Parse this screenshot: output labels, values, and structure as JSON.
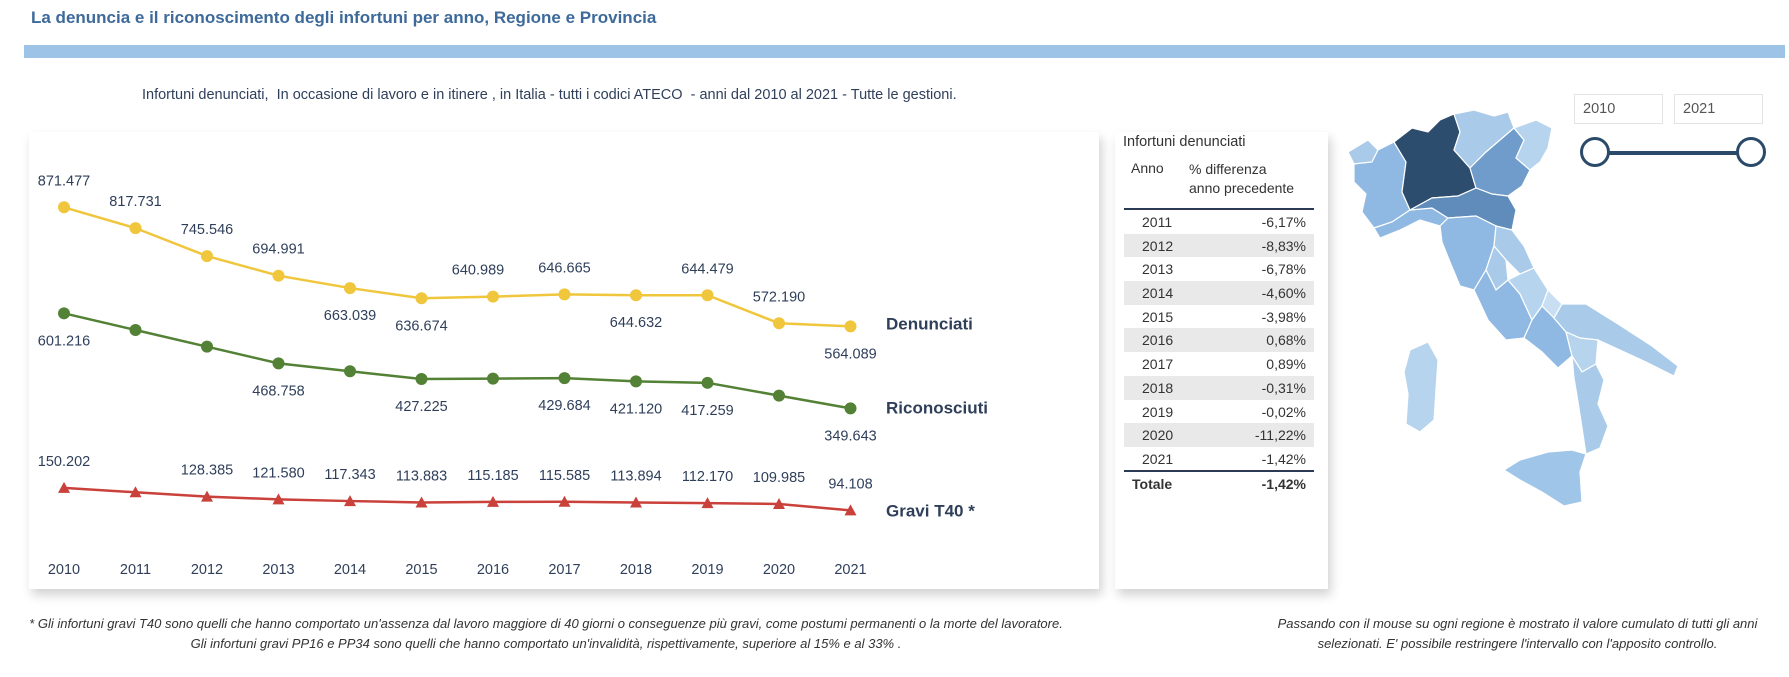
{
  "header": {
    "title": "La denuncia e il riconoscimento degli infortuni per anno, Regione e Provincia",
    "subtitle": "Infortuni denunciati,  In occasione di lavoro e in itinere , in Italia - tutti i codici ATECO  - anni dal 2010 al 2021 - Tutte le gestioni."
  },
  "chart_data": {
    "type": "line",
    "x": [
      "2010",
      "2011",
      "2012",
      "2013",
      "2014",
      "2015",
      "2016",
      "2017",
      "2018",
      "2019",
      "2020",
      "2021"
    ],
    "series": [
      {
        "name": "Denunciati",
        "color": "#f0c63d",
        "marker": "circle",
        "values": [
          871477,
          817731,
          745546,
          694991,
          663039,
          636674,
          640989,
          646665,
          644632,
          644479,
          572190,
          564089
        ],
        "labels": [
          "871.477",
          "817.731",
          "745.546",
          "694.991",
          "663.039",
          "636.674",
          "640.989",
          "646.665",
          "644.632",
          "644.479",
          "572.190",
          "564.089"
        ]
      },
      {
        "name": "Riconosciuti",
        "color": "#538135",
        "marker": "circle",
        "values": [
          601216,
          null,
          null,
          468758,
          null,
          427225,
          null,
          429684,
          421120,
          417259,
          null,
          349643
        ],
        "labels": [
          "601.216",
          "",
          "",
          "468.758",
          "",
          "427.225",
          "",
          "429.684",
          "421.120",
          "417.259",
          "",
          "349.643"
        ]
      },
      {
        "name": "Gravi T40 *",
        "color": "#c9413a",
        "marker": "triangle",
        "values": [
          150202,
          null,
          128385,
          121580,
          117343,
          113883,
          115185,
          115585,
          113894,
          112170,
          109985,
          94108
        ],
        "labels": [
          "150.202",
          "",
          "128.385",
          "121.580",
          "117.343",
          "113.883",
          "115.185",
          "115.585",
          "113.894",
          "112.170",
          "109.985",
          "94.108"
        ]
      }
    ]
  },
  "table": {
    "title": "Infortuni denunciati",
    "col_year": "Anno",
    "col_pct_1": "% differenza",
    "col_pct_2": "anno precedente",
    "rows": [
      {
        "year": "2011",
        "pct": "-6,17%"
      },
      {
        "year": "2012",
        "pct": "-8,83%"
      },
      {
        "year": "2013",
        "pct": "-6,78%"
      },
      {
        "year": "2014",
        "pct": "-4,60%"
      },
      {
        "year": "2015",
        "pct": "-3,98%"
      },
      {
        "year": "2016",
        "pct": "0,68%"
      },
      {
        "year": "2017",
        "pct": "0,89%"
      },
      {
        "year": "2018",
        "pct": "-0,31%"
      },
      {
        "year": "2019",
        "pct": "-0,02%"
      },
      {
        "year": "2020",
        "pct": "-11,22%"
      },
      {
        "year": "2021",
        "pct": "-1,42%"
      }
    ],
    "total_label": "Totale",
    "total_pct": "-1,42%"
  },
  "filter": {
    "from_year": "2010",
    "to_year": "2021",
    "accent_color": "#2b4a6a"
  },
  "notes": {
    "footnote": "* Gli infortuni gravi T40 sono quelli che hanno comportato un'assenza dal lavoro maggiore di 40 giorni o conseguenze più gravi, come postumi permanenti o la morte del lavoratore. Gli infortuni gravi PP16 e PP34 sono quelli che hanno comportato un'invalidità, rispettivamente, superiore al 15% e al 33% .",
    "map_note": "Passando con il mouse su ogni regione è mostrato il valore cumulato di tutti gli anni selezionati. E' possibile restringere l'intervallo con l'apposito controllo."
  }
}
